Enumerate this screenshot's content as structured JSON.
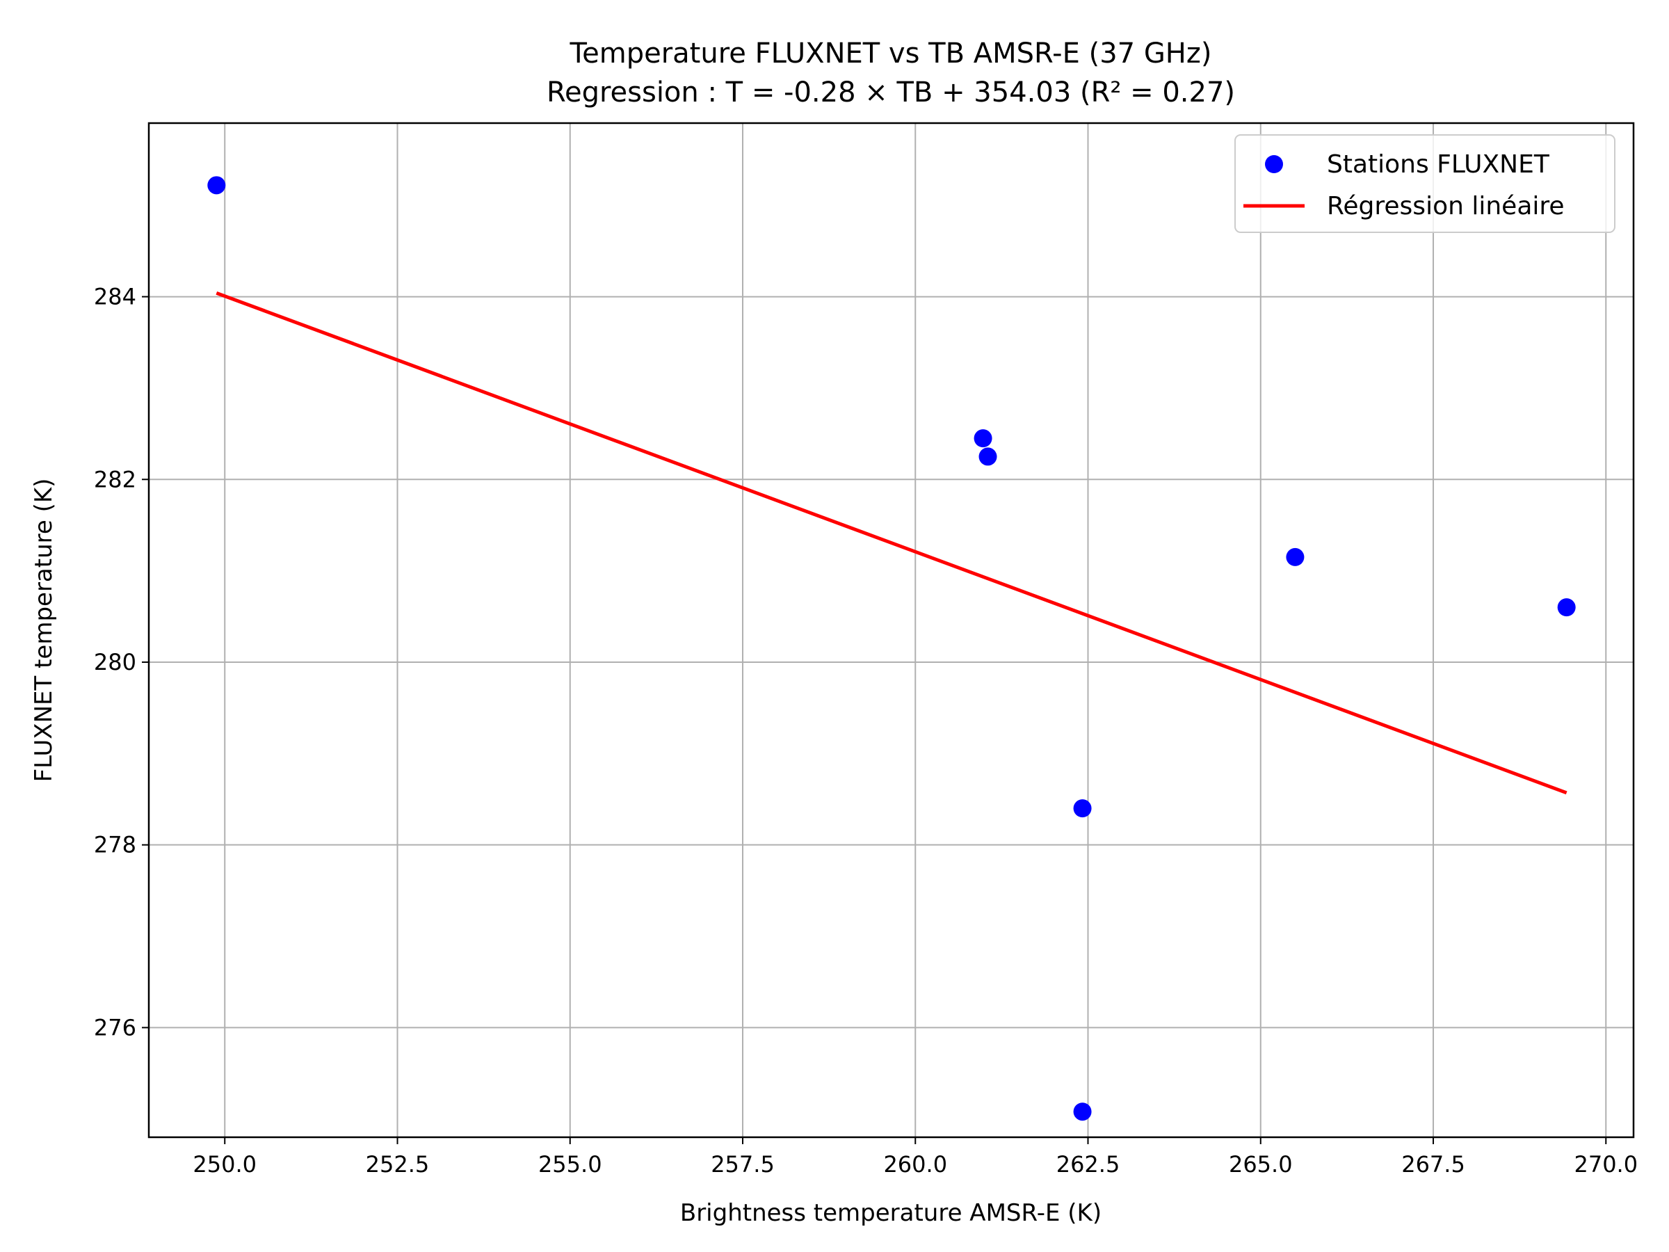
{
  "chart_data": {
    "type": "scatter",
    "title": "Temperature FLUXNET vs TB AMSR-E (37 GHz)",
    "subtitle": "Regression : T = -0.28 × TB + 354.03 (R² = 0.27)",
    "xlabel": "Brightness temperature AMSR-E (K)",
    "ylabel": "FLUXNET temperature (K)",
    "xlim": [
      248.9,
      270.4
    ],
    "ylim": [
      274.8,
      285.9
    ],
    "xticks": [
      250.0,
      252.5,
      255.0,
      257.5,
      260.0,
      262.5,
      265.0,
      267.5,
      270.0
    ],
    "xtick_labels": [
      "250.0",
      "252.5",
      "255.0",
      "257.5",
      "260.0",
      "262.5",
      "265.0",
      "267.5",
      "270.0"
    ],
    "yticks": [
      276,
      278,
      280,
      282,
      284
    ],
    "ytick_labels": [
      "276",
      "278",
      "280",
      "282",
      "284"
    ],
    "grid": true,
    "legend_position": "top-right",
    "series": [
      {
        "name": "Stations FLUXNET",
        "kind": "scatter",
        "color": "#0000ff",
        "x": [
          249.88,
          260.98,
          261.05,
          265.5,
          269.43,
          262.42,
          262.42
        ],
        "y": [
          285.22,
          282.45,
          282.25,
          281.15,
          280.6,
          278.4,
          275.08
        ]
      },
      {
        "name": "Régression linéaire",
        "kind": "line",
        "color": "#ff0000",
        "x": [
          249.88,
          269.43
        ],
        "y": [
          284.04,
          278.57
        ]
      }
    ]
  }
}
